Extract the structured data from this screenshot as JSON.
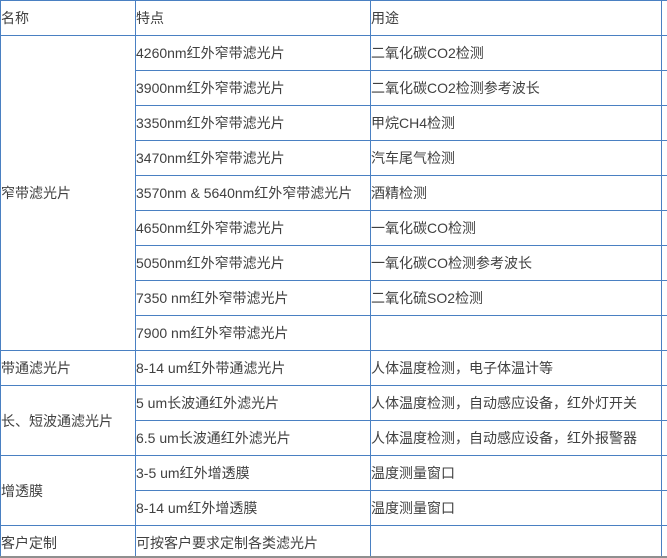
{
  "table": {
    "columns": [
      "名称",
      "特点",
      "用途"
    ],
    "groups": [
      {
        "name": "窄带滤光片",
        "rows": [
          [
            "4260nm红外窄带滤光片",
            "二氧化碳CO2检测"
          ],
          [
            "3900nm红外窄带滤光片",
            "二氧化碳CO2检测参考波长"
          ],
          [
            "3350nm红外窄带滤光片",
            "甲烷CH4检测"
          ],
          [
            "3470nm红外窄带滤光片",
            "汽车尾气检测"
          ],
          [
            "3570nm & 5640nm红外窄带滤光片",
            "酒精检测"
          ],
          [
            "4650nm红外窄带滤光片",
            "一氧化碳CO检测"
          ],
          [
            "5050nm红外窄带滤光片",
            "一氧化碳CO检测参考波长"
          ],
          [
            "7350 nm红外窄带滤光片",
            "二氧化硫SO2检测"
          ],
          [
            "7900 nm红外窄带滤光片",
            ""
          ]
        ]
      },
      {
        "name": "带通滤光片",
        "rows": [
          [
            "8-14 um红外带通滤光片",
            "人体温度检测，电子体温计等"
          ]
        ]
      },
      {
        "name": "长、短波通滤光片",
        "rows": [
          [
            "5 um长波通红外滤光片",
            "人体温度检测，自动感应设备，红外灯开关"
          ],
          [
            "6.5 um长波通红外滤光片",
            "人体温度检测，自动感应设备，红外报警器"
          ]
        ]
      },
      {
        "name": "增透膜",
        "rows": [
          [
            "3-5 um红外增透膜",
            "温度测量窗口"
          ],
          [
            "8-14 um红外增透膜",
            "温度测量窗口"
          ]
        ]
      },
      {
        "name": "客户定制",
        "rows": [
          [
            "可按客户要求定制各类滤光片",
            ""
          ]
        ]
      }
    ]
  },
  "colors": {
    "border_blue": "#4a80c2",
    "text": "#404040",
    "bottom_edge_gray": "#8f8f8f",
    "background": "#ffffff"
  }
}
